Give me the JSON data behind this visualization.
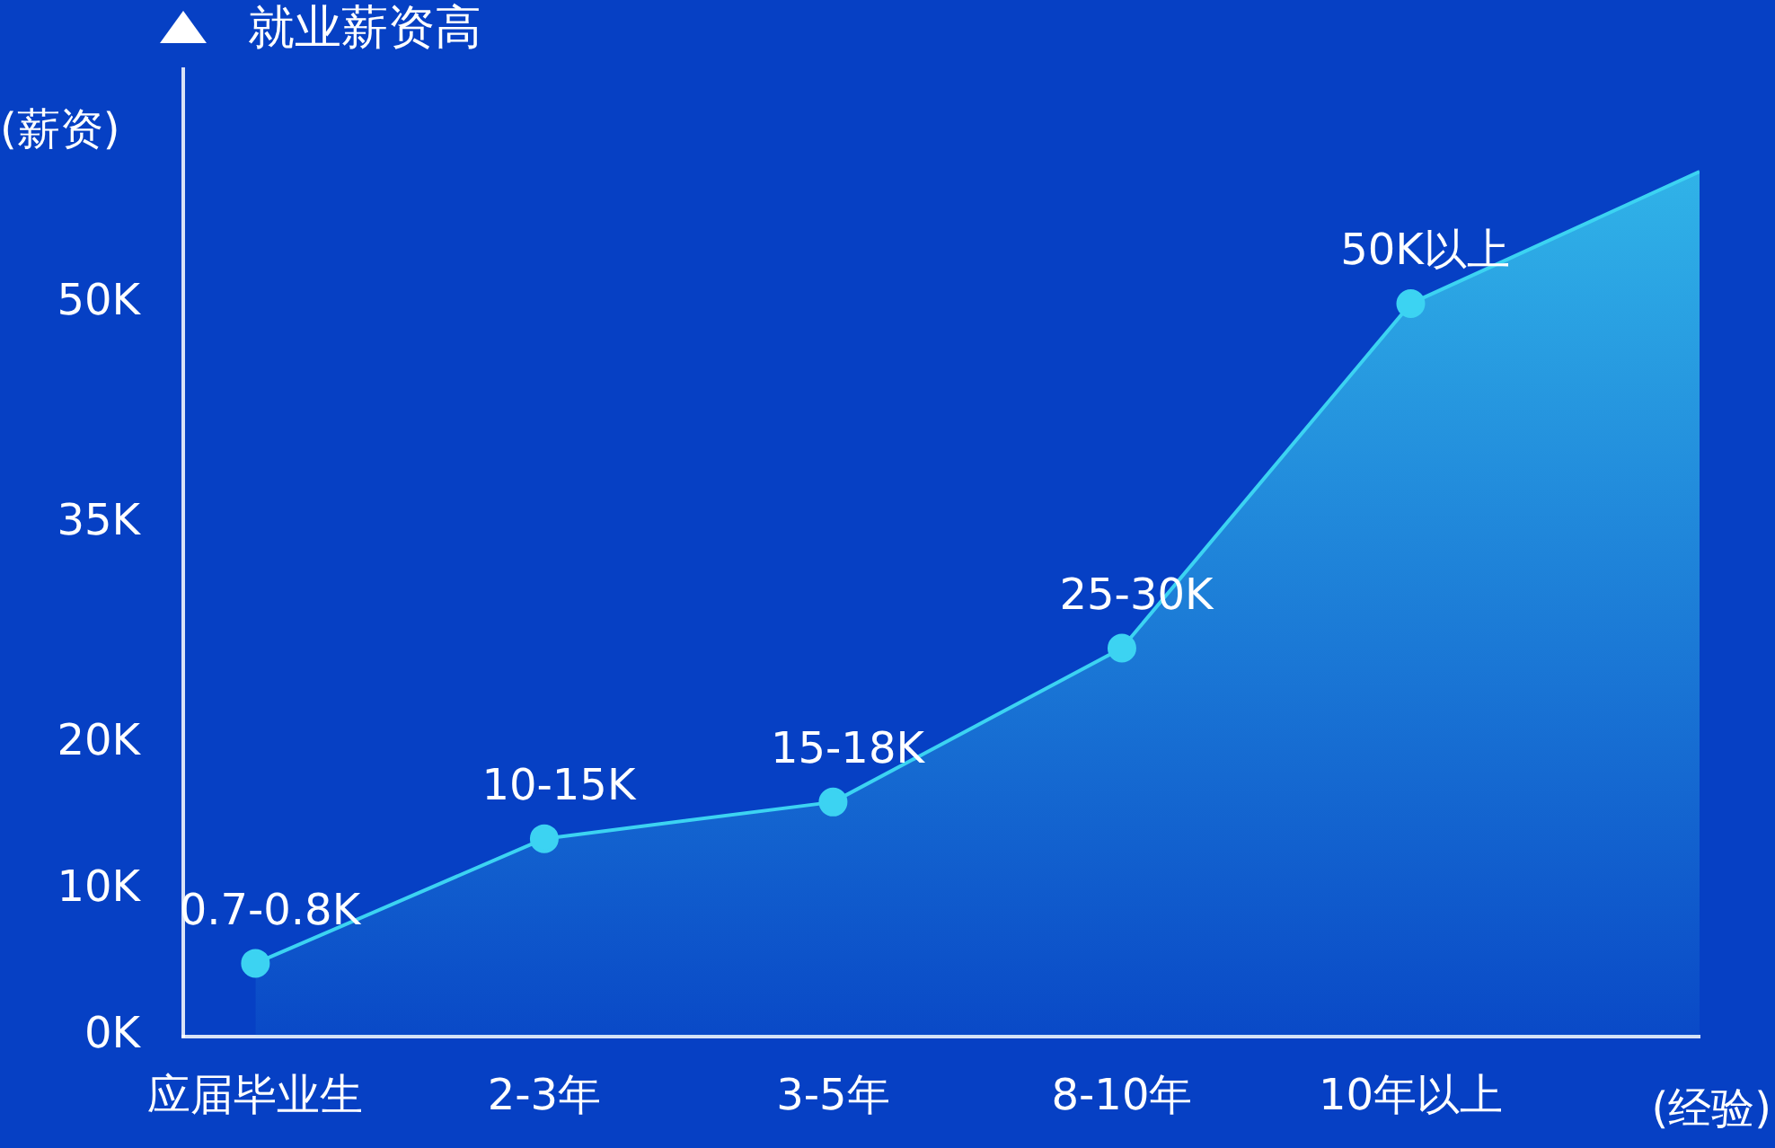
{
  "chart_data": {
    "type": "area",
    "title": "就业薪资高",
    "xlabel": "(经验)",
    "ylabel": "(薪资)",
    "categories": [
      "应届毕业生",
      "2-3年",
      "3-5年",
      "8-10年",
      "10年以上",
      null
    ],
    "ylim": [
      0,
      66
    ],
    "yticks": [
      {
        "value": 0,
        "label": "0K"
      },
      {
        "value": 10,
        "label": "10K"
      },
      {
        "value": 20,
        "label": "20K"
      },
      {
        "value": 35,
        "label": "35K"
      },
      {
        "value": 50,
        "label": "50K"
      }
    ],
    "series": [
      {
        "color": "#3cd3f2",
        "values": [
          5,
          13.5,
          16,
          26.5,
          50,
          59
        ],
        "value_labels": [
          "0.7-0.8K",
          "10-15K",
          "15-18K",
          "25-30K",
          "50K以上",
          null
        ]
      }
    ],
    "marker": "circle",
    "grid": false,
    "legend": false
  }
}
